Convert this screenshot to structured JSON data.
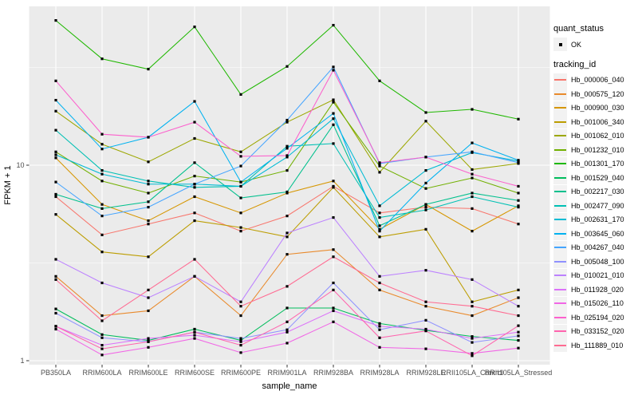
{
  "legend": {
    "quant_status": {
      "title": "quant_status",
      "items": [
        {
          "label": "OK",
          "symbol": "point",
          "color": "#000000"
        }
      ]
    },
    "tracking_id": {
      "title": "tracking_id"
    },
    "key_background": "#F2F2F2"
  },
  "chart_data": {
    "type": "line",
    "title": "",
    "xlabel": "sample_name",
    "ylabel": "FPKM + 1",
    "y_scale": "log10",
    "ylim": [
      1,
      64
    ],
    "y_ticks": [
      1,
      10
    ],
    "y_tick_labels": [
      "1",
      "10"
    ],
    "y_minor_breaks": [
      3.162,
      31.62
    ],
    "grid": true,
    "legend_position": "right",
    "panel_bg": "#EBEBEB",
    "grid_color": "#FFFFFF",
    "point_color": "#000000",
    "tick_color": "#333333",
    "tick_label_color": "#4D4D4D",
    "categories": [
      "PB350LA",
      "RRIM600LA",
      "RRIM600LE",
      "RRIM600SE",
      "RRIM600PE",
      "RRIM901LA",
      "RRIM928BA",
      "RRIM928LA",
      "RRIM928LE",
      "RRII105LA_Control",
      "RRII105LA_Stressed"
    ],
    "series": [
      {
        "name": "Hb_000006_040",
        "color": "#F8766D",
        "values": [
          6.9,
          4.4,
          5.0,
          5.7,
          4.6,
          5.5,
          7.8,
          5.7,
          6.1,
          6.0,
          5.0
        ]
      },
      {
        "name": "Hb_000575_120",
        "color": "#E98A2C",
        "values": [
          2.7,
          1.7,
          1.8,
          2.7,
          1.7,
          3.5,
          3.7,
          2.3,
          1.9,
          1.7,
          2.1
        ]
      },
      {
        "name": "Hb_000900_030",
        "color": "#D69600",
        "values": [
          10.9,
          6.3,
          5.2,
          6.9,
          5.7,
          7.2,
          8.3,
          4.7,
          6.3,
          4.6,
          6.2
        ]
      },
      {
        "name": "Hb_001006_340",
        "color": "#BC9D00",
        "values": [
          5.6,
          3.6,
          3.4,
          5.2,
          4.8,
          4.3,
          7.7,
          4.3,
          4.7,
          2.0,
          2.3
        ]
      },
      {
        "name": "Hb_001062_010",
        "color": "#9CA700",
        "values": [
          18.9,
          12.8,
          10.4,
          13.7,
          11.7,
          16.6,
          21.6,
          9.2,
          16.8,
          9.5,
          10.2
        ]
      },
      {
        "name": "Hb_001232_010",
        "color": "#71B000",
        "values": [
          11.7,
          8.3,
          7.2,
          8.8,
          8.2,
          9.4,
          21.0,
          9.9,
          7.6,
          8.6,
          7.2
        ]
      },
      {
        "name": "Hb_001301_170",
        "color": "#1FB800",
        "values": [
          55,
          35,
          31,
          51,
          23,
          32,
          52,
          27,
          18.6,
          19.3,
          17.2
        ]
      },
      {
        "name": "Hb_001529_040",
        "color": "#00BD5C",
        "values": [
          1.84,
          1.36,
          1.27,
          1.45,
          1.27,
          1.86,
          1.86,
          1.55,
          1.43,
          1.33,
          1.27
        ]
      },
      {
        "name": "Hb_002217_030",
        "color": "#00C08D",
        "values": [
          7.1,
          6.0,
          6.5,
          10.3,
          6.8,
          7.3,
          16.1,
          4.9,
          6.3,
          7.2,
          6.6
        ]
      },
      {
        "name": "Hb_002477_090",
        "color": "#00C0B4",
        "values": [
          15.1,
          9.4,
          8.3,
          7.7,
          7.8,
          12.5,
          12.9,
          5.4,
          5.9,
          6.9,
          6.1
        ]
      },
      {
        "name": "Hb_002631_170",
        "color": "#00BBD4",
        "values": [
          11.3,
          9.0,
          8.0,
          8.0,
          7.8,
          11.0,
          17.3,
          6.2,
          9.4,
          11.6,
          10.5
        ]
      },
      {
        "name": "Hb_003645_060",
        "color": "#00B2F0",
        "values": [
          21.5,
          12.1,
          13.9,
          21.2,
          8.2,
          12.2,
          18.4,
          4.6,
          8.1,
          13.0,
          10.6
        ]
      },
      {
        "name": "Hb_004267_040",
        "color": "#45A5FF",
        "values": [
          8.2,
          5.5,
          6.1,
          8.0,
          9.9,
          17.0,
          31.8,
          10.2,
          11.0,
          11.7,
          10.3
        ]
      },
      {
        "name": "Hb_005048_100",
        "color": "#8F91FF",
        "values": [
          1.75,
          1.31,
          1.25,
          1.4,
          1.3,
          1.44,
          2.5,
          1.44,
          1.61,
          1.24,
          1.34
        ]
      },
      {
        "name": "Hb_010021_010",
        "color": "#BC81FF",
        "values": [
          3.3,
          2.5,
          2.1,
          2.7,
          2.0,
          4.5,
          5.4,
          2.7,
          2.9,
          2.6,
          1.9
        ]
      },
      {
        "name": "Hb_011928_020",
        "color": "#DC71F9",
        "values": [
          1.5,
          1.2,
          1.3,
          1.35,
          1.25,
          1.4,
          1.8,
          1.5,
          1.45,
          1.3,
          1.4
        ]
      },
      {
        "name": "Hb_015026_110",
        "color": "#F166E6",
        "values": [
          1.45,
          1.07,
          1.17,
          1.3,
          1.1,
          1.23,
          1.58,
          1.17,
          1.15,
          1.09,
          1.16
        ]
      },
      {
        "name": "Hb_025194_020",
        "color": "#FC61CD",
        "values": [
          27,
          14.4,
          13.9,
          16.6,
          11.1,
          11.2,
          30.6,
          10.3,
          11.0,
          9.0,
          7.8
        ]
      },
      {
        "name": "Hb_033152_020",
        "color": "#FF64AE",
        "values": [
          1.5,
          1.15,
          1.25,
          1.4,
          1.2,
          1.58,
          2.3,
          1.31,
          1.42,
          1.06,
          1.51
        ]
      },
      {
        "name": "Hb_111889_010",
        "color": "#FF6B92",
        "values": [
          2.6,
          1.6,
          2.3,
          3.3,
          1.9,
          2.4,
          3.4,
          2.5,
          2.0,
          1.9,
          1.7
        ]
      }
    ]
  }
}
